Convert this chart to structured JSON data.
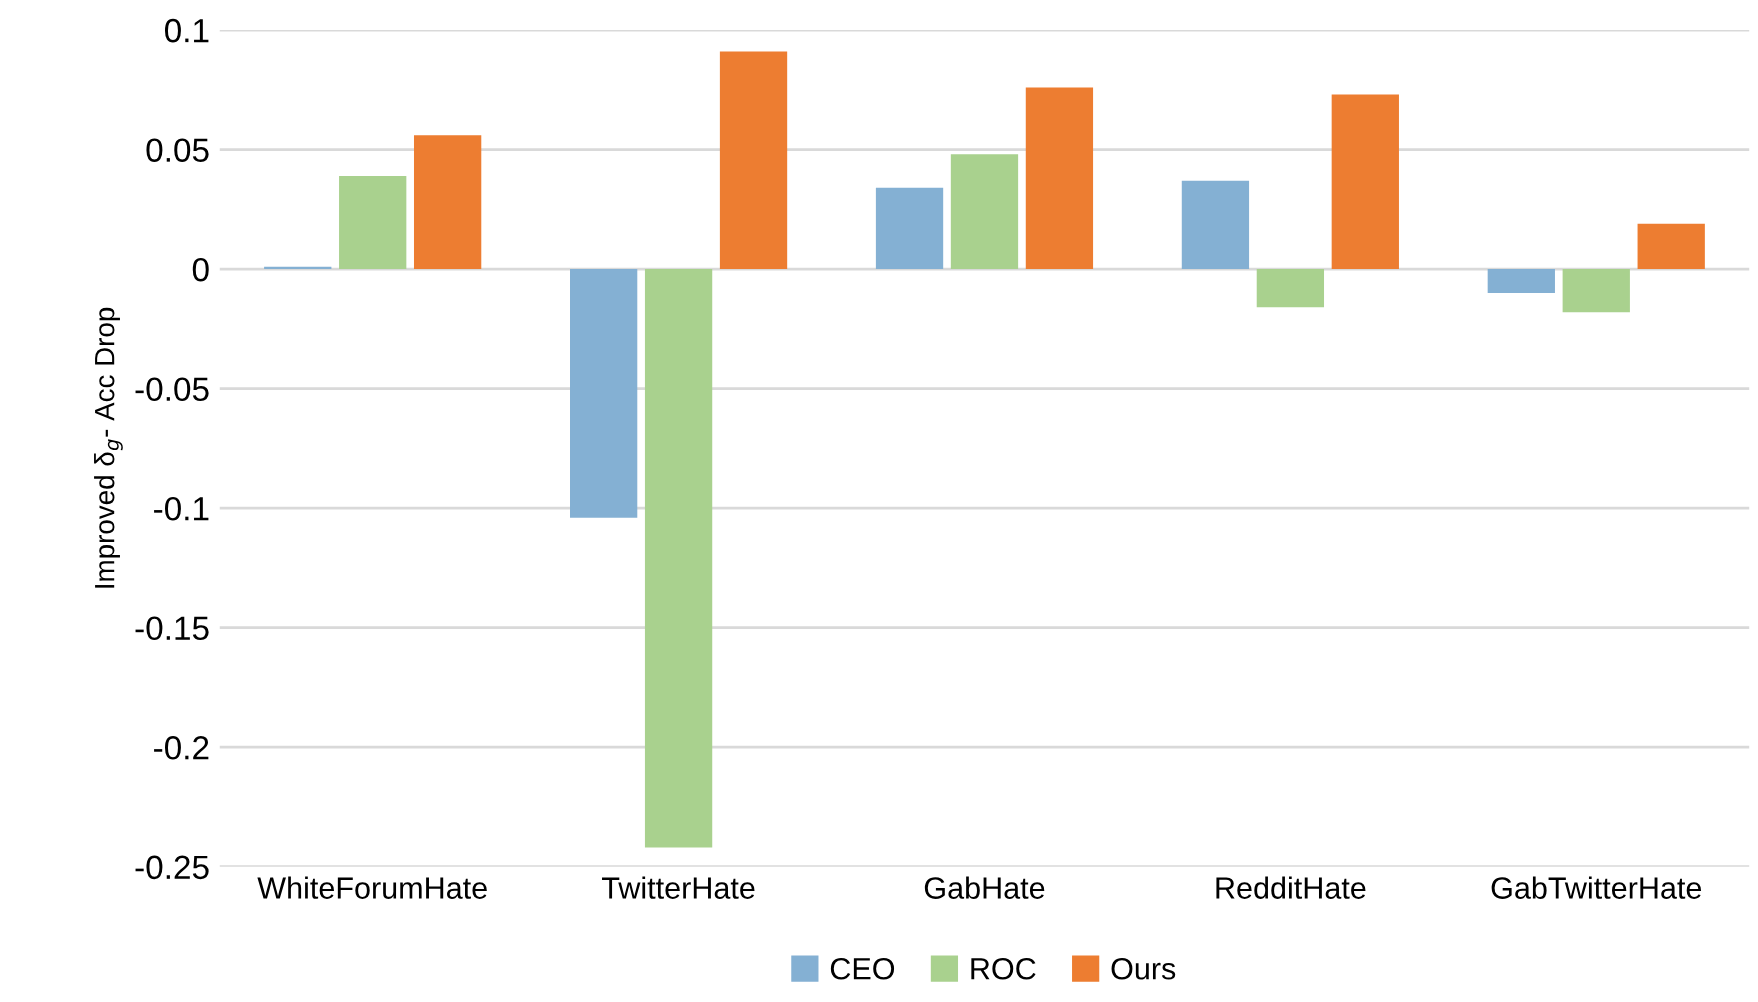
{
  "chart_data": {
    "type": "bar",
    "ylabel": "Improved δ$_{g}$- Acc Drop",
    "categories": [
      "WhiteForumHate",
      "TwitterHate",
      "GabHate",
      "RedditHate",
      "GabTwitterHate"
    ],
    "series": [
      {
        "name": "CEO",
        "color": "#84b0d3",
        "values": [
          0.001,
          -0.104,
          0.034,
          0.037,
          -0.01
        ]
      },
      {
        "name": "ROC",
        "color": "#a9d18e",
        "values": [
          0.039,
          -0.242,
          0.048,
          -0.016,
          -0.018
        ]
      },
      {
        "name": "Ours",
        "color": "#ed7d31",
        "values": [
          0.056,
          0.091,
          0.076,
          0.073,
          0.019
        ]
      }
    ],
    "ylim": [
      -0.25,
      0.1
    ],
    "yticks": [
      -0.25,
      -0.2,
      -0.15,
      -0.1,
      -0.05,
      0,
      0.05,
      0.1
    ],
    "grid": "y",
    "legend": "bottom"
  }
}
